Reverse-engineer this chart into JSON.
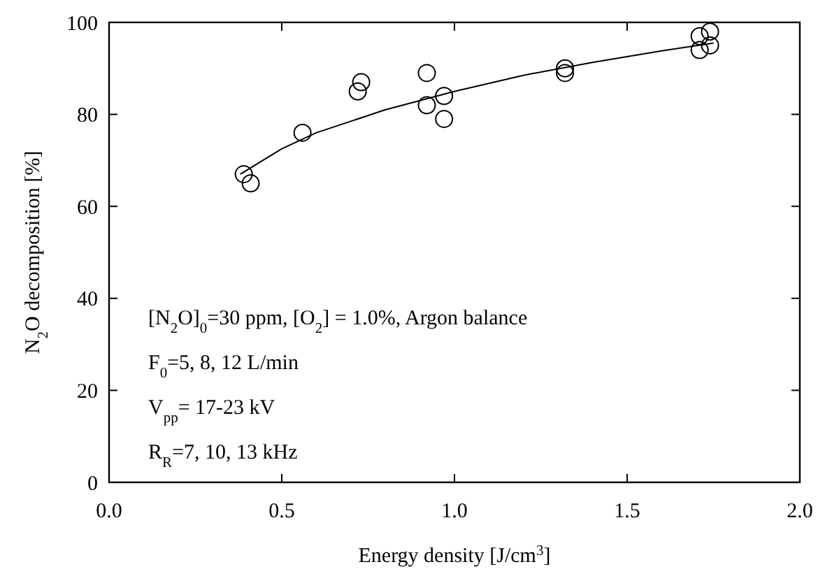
{
  "chart_data": {
    "type": "scatter",
    "xlabel": "Energy density [J/cm$^{3}$]",
    "ylabel": "N$_{2}$O decomposition [%]",
    "xlim": [
      0,
      2
    ],
    "xticks": [
      {
        "value": 0,
        "label": "0.0"
      },
      0.5,
      {
        "value": 1,
        "label": "1.0"
      },
      1.5,
      {
        "value": 2,
        "label": "2.0"
      }
    ],
    "ylim": [
      0,
      100
    ],
    "yticks": [
      0,
      20,
      40,
      60,
      80,
      100
    ],
    "grid": false,
    "marker": "circle",
    "series": [
      {
        "color": "#000000",
        "x": [
          0.39,
          0.41,
          0.56,
          0.72,
          0.73,
          0.92,
          0.92,
          0.97,
          0.97,
          1.32,
          1.32,
          1.71,
          1.71,
          1.74,
          1.74
        ],
        "values": [
          67,
          65,
          76,
          85,
          87,
          89,
          82,
          84,
          79,
          90,
          89,
          97,
          94,
          98,
          95
        ]
      },
      {
        "type": "line",
        "color": "#000000",
        "marker": "none",
        "line_style": "solid",
        "x": [
          0.38,
          0.5,
          0.6,
          0.8,
          1.0,
          1.2,
          1.4,
          1.6,
          1.75
        ],
        "values": [
          67,
          72.5,
          76,
          81,
          85,
          88.5,
          91.3,
          93.8,
          95.5
        ]
      }
    ],
    "annotations": [
      "[N$_{2}$O]$_{0}$=30 ppm, [O$_{2}$] = 1.0%, Argon balance",
      "F$_{0}$=5, 8, 12 L/min",
      "V$_{pp}$= 17-23 kV",
      "R$_{R}$=7, 10, 13 kHz"
    ]
  }
}
